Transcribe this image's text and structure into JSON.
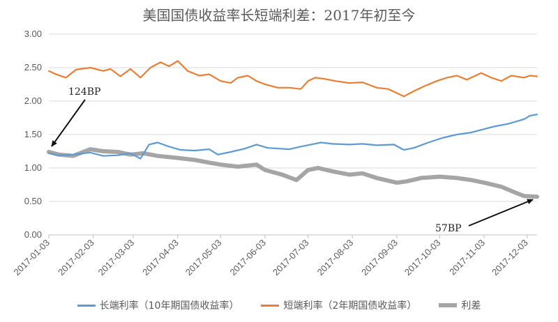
{
  "chart_data": {
    "type": "line",
    "title": "美国国债收益率长短端利差：2017年初至今",
    "xlabel": "",
    "ylabel": "",
    "ylim": [
      0,
      3
    ],
    "yticks": [
      "0.00",
      "0.50",
      "1.00",
      "1.50",
      "2.00",
      "2.50",
      "3.00"
    ],
    "xticks": [
      "2017-01-03",
      "2017-02-03",
      "2017-03-03",
      "2017-04-03",
      "2017-05-03",
      "2017-06-03",
      "2017-07-03",
      "2017-08-03",
      "2017-09-03",
      "2017-10-03",
      "2017-11-03",
      "2017-12-03"
    ],
    "grid": "horizontal",
    "legend_position": "bottom",
    "series": [
      {
        "name": "长端利率（10年期国债收益率）",
        "color": "#5B9BD5",
        "points": [
          [
            "2017-01-03",
            1.22
          ],
          [
            "2017-01-10",
            1.19
          ],
          [
            "2017-01-20",
            1.2
          ],
          [
            "2017-02-01",
            1.23
          ],
          [
            "2017-02-10",
            1.18
          ],
          [
            "2017-02-20",
            1.19
          ],
          [
            "2017-03-01",
            1.22
          ],
          [
            "2017-03-08",
            1.14
          ],
          [
            "2017-03-14",
            1.35
          ],
          [
            "2017-03-20",
            1.38
          ],
          [
            "2017-03-28",
            1.32
          ],
          [
            "2017-04-05",
            1.27
          ],
          [
            "2017-04-15",
            1.26
          ],
          [
            "2017-04-25",
            1.28
          ],
          [
            "2017-05-01",
            1.2
          ],
          [
            "2017-05-10",
            1.24
          ],
          [
            "2017-05-20",
            1.29
          ],
          [
            "2017-05-28",
            1.35
          ],
          [
            "2017-06-05",
            1.3
          ],
          [
            "2017-06-20",
            1.28
          ],
          [
            "2017-06-28",
            1.32
          ],
          [
            "2017-07-05",
            1.35
          ],
          [
            "2017-07-12",
            1.38
          ],
          [
            "2017-07-20",
            1.36
          ],
          [
            "2017-08-01",
            1.35
          ],
          [
            "2017-08-10",
            1.36
          ],
          [
            "2017-08-20",
            1.34
          ],
          [
            "2017-09-01",
            1.35
          ],
          [
            "2017-09-08",
            1.27
          ],
          [
            "2017-09-15",
            1.3
          ],
          [
            "2017-09-25",
            1.38
          ],
          [
            "2017-10-05",
            1.45
          ],
          [
            "2017-10-15",
            1.5
          ],
          [
            "2017-10-25",
            1.53
          ],
          [
            "2017-11-01",
            1.57
          ],
          [
            "2017-11-10",
            1.62
          ],
          [
            "2017-11-20",
            1.66
          ],
          [
            "2017-12-01",
            1.73
          ],
          [
            "2017-12-05",
            1.78
          ],
          [
            "2017-12-10",
            1.8
          ]
        ]
      },
      {
        "name": "短端利率（2年期国债收益率）",
        "color": "#ED7D31",
        "points": [
          [
            "2017-01-03",
            2.45
          ],
          [
            "2017-01-08",
            2.4
          ],
          [
            "2017-01-15",
            2.35
          ],
          [
            "2017-01-22",
            2.47
          ],
          [
            "2017-02-01",
            2.5
          ],
          [
            "2017-02-10",
            2.45
          ],
          [
            "2017-02-15",
            2.48
          ],
          [
            "2017-02-22",
            2.37
          ],
          [
            "2017-03-01",
            2.48
          ],
          [
            "2017-03-08",
            2.35
          ],
          [
            "2017-03-15",
            2.5
          ],
          [
            "2017-03-22",
            2.58
          ],
          [
            "2017-03-28",
            2.52
          ],
          [
            "2017-04-03",
            2.6
          ],
          [
            "2017-04-10",
            2.45
          ],
          [
            "2017-04-18",
            2.38
          ],
          [
            "2017-04-25",
            2.4
          ],
          [
            "2017-05-03",
            2.3
          ],
          [
            "2017-05-10",
            2.27
          ],
          [
            "2017-05-15",
            2.35
          ],
          [
            "2017-05-22",
            2.38
          ],
          [
            "2017-05-28",
            2.3
          ],
          [
            "2017-06-03",
            2.25
          ],
          [
            "2017-06-12",
            2.2
          ],
          [
            "2017-06-20",
            2.2
          ],
          [
            "2017-06-28",
            2.18
          ],
          [
            "2017-07-03",
            2.3
          ],
          [
            "2017-07-08",
            2.35
          ],
          [
            "2017-07-15",
            2.33
          ],
          [
            "2017-07-22",
            2.3
          ],
          [
            "2017-08-01",
            2.27
          ],
          [
            "2017-08-10",
            2.28
          ],
          [
            "2017-08-20",
            2.2
          ],
          [
            "2017-08-28",
            2.18
          ],
          [
            "2017-09-03",
            2.12
          ],
          [
            "2017-09-08",
            2.07
          ],
          [
            "2017-09-15",
            2.15
          ],
          [
            "2017-09-22",
            2.22
          ],
          [
            "2017-10-01",
            2.3
          ],
          [
            "2017-10-08",
            2.35
          ],
          [
            "2017-10-15",
            2.38
          ],
          [
            "2017-10-22",
            2.32
          ],
          [
            "2017-11-01",
            2.42
          ],
          [
            "2017-11-08",
            2.35
          ],
          [
            "2017-11-15",
            2.3
          ],
          [
            "2017-11-22",
            2.38
          ],
          [
            "2017-12-01",
            2.35
          ],
          [
            "2017-12-05",
            2.38
          ],
          [
            "2017-12-10",
            2.37
          ]
        ]
      },
      {
        "name": "利差",
        "color": "#A5A5A5",
        "points": [
          [
            "2017-01-03",
            1.24
          ],
          [
            "2017-01-10",
            1.2
          ],
          [
            "2017-01-20",
            1.18
          ],
          [
            "2017-02-01",
            1.28
          ],
          [
            "2017-02-10",
            1.25
          ],
          [
            "2017-02-20",
            1.24
          ],
          [
            "2017-03-01",
            1.2
          ],
          [
            "2017-03-10",
            1.22
          ],
          [
            "2017-03-20",
            1.18
          ],
          [
            "2017-04-03",
            1.15
          ],
          [
            "2017-04-15",
            1.12
          ],
          [
            "2017-04-25",
            1.08
          ],
          [
            "2017-05-03",
            1.05
          ],
          [
            "2017-05-15",
            1.02
          ],
          [
            "2017-05-28",
            1.05
          ],
          [
            "2017-06-03",
            0.97
          ],
          [
            "2017-06-15",
            0.9
          ],
          [
            "2017-06-25",
            0.82
          ],
          [
            "2017-07-03",
            0.97
          ],
          [
            "2017-07-10",
            1.0
          ],
          [
            "2017-07-20",
            0.95
          ],
          [
            "2017-08-01",
            0.9
          ],
          [
            "2017-08-10",
            0.92
          ],
          [
            "2017-08-20",
            0.85
          ],
          [
            "2017-09-03",
            0.78
          ],
          [
            "2017-09-10",
            0.8
          ],
          [
            "2017-09-20",
            0.85
          ],
          [
            "2017-10-03",
            0.87
          ],
          [
            "2017-10-15",
            0.85
          ],
          [
            "2017-10-25",
            0.82
          ],
          [
            "2017-11-03",
            0.78
          ],
          [
            "2017-11-15",
            0.72
          ],
          [
            "2017-11-25",
            0.63
          ],
          [
            "2017-12-01",
            0.58
          ],
          [
            "2017-12-10",
            0.57
          ]
        ]
      }
    ],
    "annotations": [
      {
        "text": "124BP",
        "x": "2017-01-03",
        "y": 1.24
      },
      {
        "text": "57BP",
        "x": "2017-12-10",
        "y": 0.57
      }
    ]
  },
  "title": "美国国债收益率长短端利差：2017年初至今",
  "legend": [
    {
      "label": "长端利率（10年期国债收益率）",
      "color": "#5B9BD5"
    },
    {
      "label": "短端利率（2年期国债收益率）",
      "color": "#ED7D31"
    },
    {
      "label": "利差",
      "color": "#A5A5A5"
    }
  ]
}
